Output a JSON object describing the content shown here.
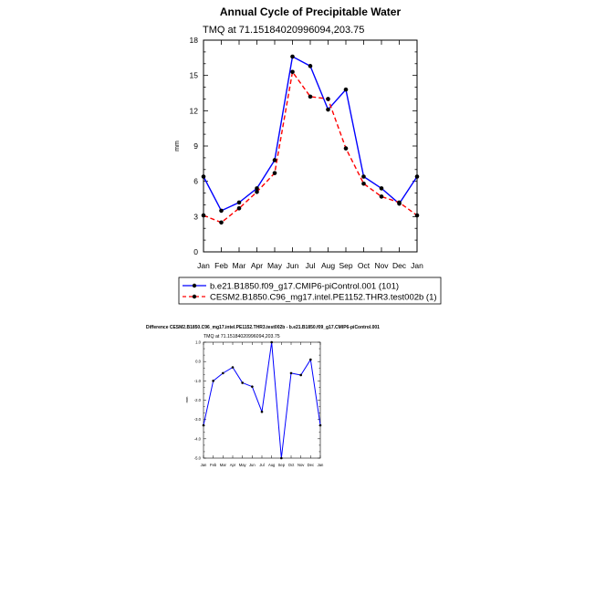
{
  "chart_data": [
    {
      "type": "line",
      "title": "Annual Cycle of Precipitable Water",
      "subtitle": "TMQ at 71.15184020996094,203.75",
      "xlabel": "",
      "ylabel": "mm",
      "categories": [
        "Jan",
        "Feb",
        "Mar",
        "Apr",
        "May",
        "Jun",
        "Jul",
        "Aug",
        "Sep",
        "Oct",
        "Nov",
        "Dec",
        "Jan"
      ],
      "ylim": [
        0,
        18
      ],
      "yticks": [
        "0",
        "3",
        "6",
        "9",
        "12",
        "15",
        "18"
      ],
      "series": [
        {
          "name": "b.e21.B1850.f09_g17.CMIP6-piControl.001 (101)",
          "color": "#0000ff",
          "dash": "solid",
          "values": [
            6.4,
            3.5,
            4.2,
            5.4,
            7.8,
            16.6,
            15.8,
            12.1,
            13.8,
            6.4,
            5.4,
            4.1,
            6.4
          ]
        },
        {
          "name": "CESM2.B1850.C96_mg17.intel.PE1152.THR3.test002b (1)",
          "color": "#ff0000",
          "dash": "dashed",
          "values": [
            3.1,
            2.5,
            3.7,
            5.1,
            6.7,
            15.3,
            13.2,
            13.0,
            8.8,
            5.8,
            4.7,
            4.2,
            3.1
          ]
        }
      ]
    },
    {
      "type": "line",
      "title": "Difference CESM2.B1850.C96_mg17.intel.PE1152.THR3.test002b - b.e21.B1850.f09_g17.CMIP6-piControl.001",
      "subtitle": "TMQ at 71.15184020996094,203.75",
      "xlabel": "",
      "ylabel": "mm",
      "categories": [
        "Jan",
        "Feb",
        "Mar",
        "Apr",
        "May",
        "Jun",
        "Jul",
        "Aug",
        "Sep",
        "Oct",
        "Nov",
        "Dec",
        "Jan"
      ],
      "ylim": [
        -5,
        1
      ],
      "yticks": [
        "-5.0",
        "-4.0",
        "-3.0",
        "-2.0",
        "-1.0",
        "0.0",
        "1.0"
      ],
      "series": [
        {
          "name": "Difference",
          "color": "#0000ff",
          "dash": "solid",
          "values": [
            -3.3,
            -1.0,
            -0.6,
            -0.3,
            -1.1,
            -1.3,
            -2.6,
            1.0,
            -5.0,
            -0.6,
            -0.7,
            0.1,
            -3.3
          ]
        }
      ]
    }
  ]
}
